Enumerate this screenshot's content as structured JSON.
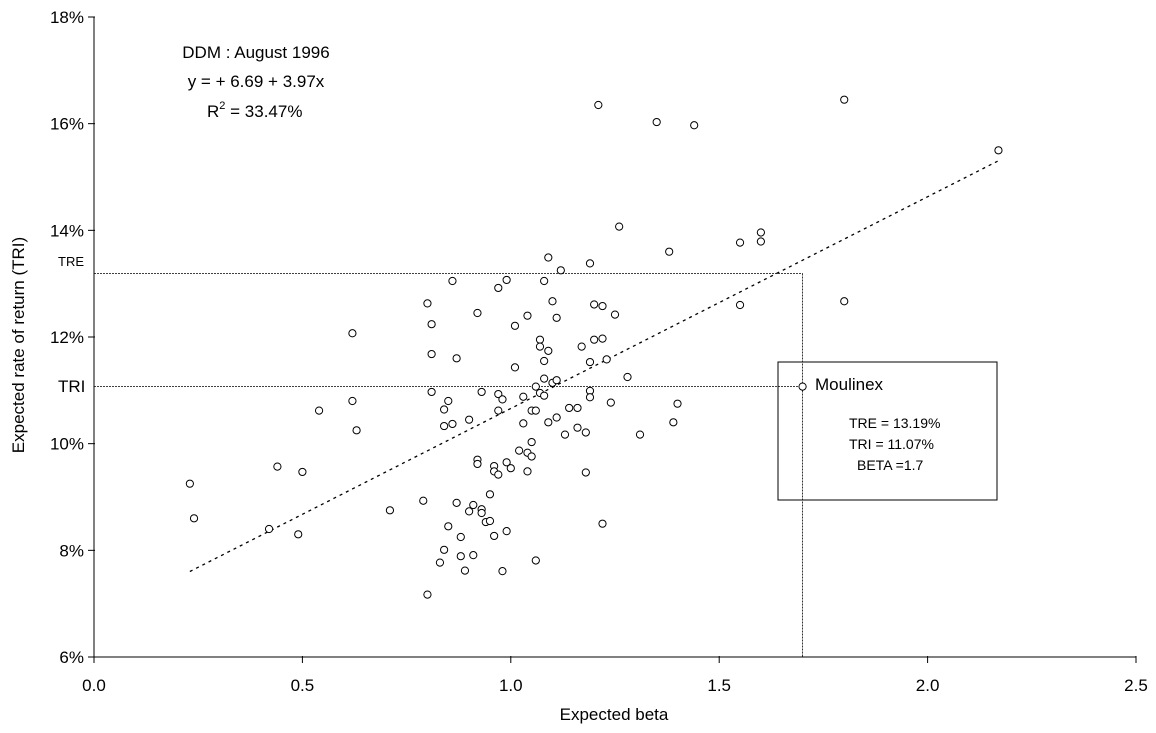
{
  "chart_data": {
    "type": "scatter",
    "title": "",
    "xlabel": "Expected beta",
    "ylabel": "Expected rate of return (TRI)",
    "xlim": [
      0.0,
      2.5
    ],
    "ylim": [
      6,
      18
    ],
    "x_ticks": [
      "0.0",
      "0.5",
      "1.0",
      "1.5",
      "2.0",
      "2.5"
    ],
    "x_tick_values": [
      0.0,
      0.5,
      1.0,
      1.5,
      2.0,
      2.5
    ],
    "y_ticks": [
      "6%",
      "8%",
      "10%",
      "12%",
      "14%",
      "16%",
      "18%"
    ],
    "y_tick_values": [
      6,
      8,
      10,
      12,
      14,
      16,
      18
    ],
    "grid": false,
    "annotation": {
      "line1": "DDM : August 1996",
      "line2": "y = + 6.69 + 3.97x",
      "r2_prefix": "R",
      "r2_sup": "2",
      "r2_suffix": " = 33.47%"
    },
    "regression": {
      "intercept": 6.69,
      "slope": 3.97,
      "x_from": 0.23,
      "x_to": 2.17
    },
    "highlight": {
      "label": "Moulinex",
      "beta": 1.7,
      "tre": 13.19,
      "tri": 11.07,
      "tre_axis_label": "TRE",
      "tri_axis_label": "TRI",
      "box_lines": [
        "TRE = 13.19%",
        "TRI  = 11.07%",
        "BETA =1.7"
      ]
    },
    "points": [
      [
        0.23,
        9.25
      ],
      [
        0.24,
        8.6
      ],
      [
        0.42,
        8.4
      ],
      [
        0.44,
        9.57
      ],
      [
        0.49,
        8.3
      ],
      [
        0.5,
        9.47
      ],
      [
        0.54,
        10.62
      ],
      [
        0.62,
        12.07
      ],
      [
        0.62,
        10.8
      ],
      [
        0.63,
        10.25
      ],
      [
        0.71,
        8.75
      ],
      [
        0.79,
        8.93
      ],
      [
        0.8,
        12.63
      ],
      [
        0.8,
        7.17
      ],
      [
        0.81,
        12.24
      ],
      [
        0.81,
        11.68
      ],
      [
        0.81,
        10.97
      ],
      [
        0.83,
        7.77
      ],
      [
        0.84,
        8.01
      ],
      [
        0.84,
        10.64
      ],
      [
        0.84,
        10.33
      ],
      [
        0.85,
        10.8
      ],
      [
        0.85,
        8.45
      ],
      [
        0.86,
        13.05
      ],
      [
        0.86,
        10.37
      ],
      [
        0.87,
        11.6
      ],
      [
        0.87,
        8.89
      ],
      [
        0.88,
        7.89
      ],
      [
        0.88,
        8.25
      ],
      [
        0.89,
        7.62
      ],
      [
        0.9,
        10.45
      ],
      [
        0.9,
        8.73
      ],
      [
        0.91,
        8.85
      ],
      [
        0.91,
        7.91
      ],
      [
        0.92,
        12.45
      ],
      [
        0.92,
        9.7
      ],
      [
        0.92,
        9.62
      ],
      [
        0.93,
        10.97
      ],
      [
        0.93,
        8.77
      ],
      [
        0.93,
        8.7
      ],
      [
        0.94,
        8.53
      ],
      [
        0.95,
        9.05
      ],
      [
        0.95,
        8.55
      ],
      [
        0.96,
        9.58
      ],
      [
        0.96,
        9.48
      ],
      [
        0.96,
        8.27
      ],
      [
        0.97,
        12.92
      ],
      [
        0.97,
        10.93
      ],
      [
        0.97,
        10.62
      ],
      [
        0.97,
        9.42
      ],
      [
        0.98,
        7.61
      ],
      [
        0.98,
        10.83
      ],
      [
        0.99,
        13.07
      ],
      [
        0.99,
        9.65
      ],
      [
        0.99,
        8.36
      ],
      [
        1.0,
        9.54
      ],
      [
        1.01,
        12.21
      ],
      [
        1.01,
        11.43
      ],
      [
        1.02,
        9.87
      ],
      [
        1.03,
        10.88
      ],
      [
        1.03,
        10.38
      ],
      [
        1.04,
        12.4
      ],
      [
        1.04,
        9.83
      ],
      [
        1.04,
        9.48
      ],
      [
        1.05,
        10.62
      ],
      [
        1.05,
        10.03
      ],
      [
        1.05,
        9.76
      ],
      [
        1.06,
        11.07
      ],
      [
        1.06,
        10.62
      ],
      [
        1.06,
        7.81
      ],
      [
        1.07,
        11.95
      ],
      [
        1.07,
        11.82
      ],
      [
        1.07,
        10.95
      ],
      [
        1.08,
        13.05
      ],
      [
        1.08,
        11.55
      ],
      [
        1.08,
        11.22
      ],
      [
        1.08,
        10.9
      ],
      [
        1.09,
        13.49
      ],
      [
        1.09,
        11.74
      ],
      [
        1.09,
        10.4
      ],
      [
        1.1,
        12.67
      ],
      [
        1.1,
        11.14
      ],
      [
        1.11,
        12.36
      ],
      [
        1.11,
        11.19
      ],
      [
        1.11,
        10.49
      ],
      [
        1.12,
        13.25
      ],
      [
        1.13,
        10.17
      ],
      [
        1.14,
        10.67
      ],
      [
        1.16,
        10.67
      ],
      [
        1.16,
        10.3
      ],
      [
        1.17,
        11.82
      ],
      [
        1.18,
        10.21
      ],
      [
        1.18,
        9.46
      ],
      [
        1.19,
        13.38
      ],
      [
        1.19,
        11.53
      ],
      [
        1.19,
        10.99
      ],
      [
        1.19,
        10.87
      ],
      [
        1.2,
        12.61
      ],
      [
        1.2,
        11.95
      ],
      [
        1.21,
        16.35
      ],
      [
        1.22,
        12.58
      ],
      [
        1.22,
        11.97
      ],
      [
        1.22,
        8.5
      ],
      [
        1.23,
        11.58
      ],
      [
        1.24,
        10.77
      ],
      [
        1.25,
        12.42
      ],
      [
        1.26,
        14.07
      ],
      [
        1.28,
        11.25
      ],
      [
        1.31,
        10.17
      ],
      [
        1.35,
        16.03
      ],
      [
        1.38,
        13.6
      ],
      [
        1.39,
        10.4
      ],
      [
        1.4,
        10.75
      ],
      [
        1.44,
        15.97
      ],
      [
        1.55,
        13.77
      ],
      [
        1.55,
        12.6
      ],
      [
        1.6,
        13.96
      ],
      [
        1.6,
        13.79
      ],
      [
        1.8,
        16.45
      ],
      [
        1.8,
        12.67
      ],
      [
        2.17,
        15.5
      ]
    ]
  }
}
